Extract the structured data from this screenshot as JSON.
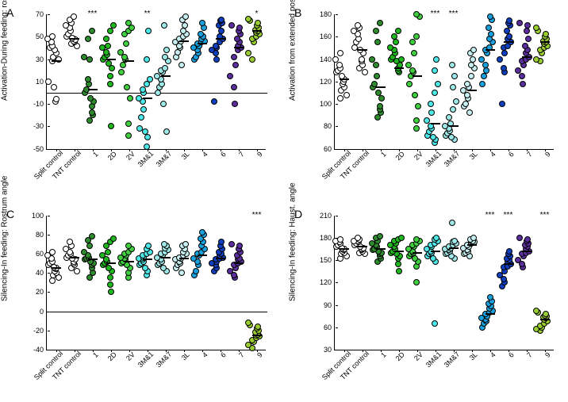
{
  "panel_letter_fontsize": 14,
  "label_fontsize": 10,
  "tick_fontsize": 9,
  "point_diameter": 8,
  "categories": [
    {
      "key": "split",
      "label": "Split control",
      "color": "#ffffff"
    },
    {
      "key": "tnt",
      "label": "TNT control",
      "color": "#ffffff"
    },
    {
      "key": "c1",
      "label": "1",
      "color": "#2e8b2e"
    },
    {
      "key": "c2D",
      "label": "2D",
      "color": "#1fb81f"
    },
    {
      "key": "c2V",
      "label": "2V",
      "color": "#3fcf3f"
    },
    {
      "key": "c3M1",
      "label": "3M&1",
      "color": "#4fe8e8"
    },
    {
      "key": "c3M7",
      "label": "3M&7",
      "color": "#9ee8e8"
    },
    {
      "key": "c3L",
      "label": "3L",
      "color": "#c7eef0"
    },
    {
      "key": "c4",
      "label": "4",
      "color": "#1aa0dc"
    },
    {
      "key": "c6",
      "label": "6",
      "color": "#1040c0"
    },
    {
      "key": "c7",
      "label": "7",
      "color": "#5a2e9c"
    },
    {
      "key": "c9",
      "label": "9",
      "color": "#9acd32"
    }
  ],
  "panels": [
    {
      "id": "A",
      "letter": "A",
      "ylabel": "Activation-During feeding: rostrum angle",
      "ymin": -50,
      "ymax": 70,
      "ytick_step": 20,
      "zeroline": 0,
      "sig": {
        "c1": "***",
        "c3M1": "**",
        "c9": "*"
      },
      "data": {
        "split": [
          28,
          30,
          32,
          35,
          38,
          -8,
          -6,
          5,
          10,
          40,
          42,
          45,
          48,
          50
        ],
        "tnt": [
          42,
          44,
          45,
          46,
          48,
          47,
          49,
          50,
          52,
          55,
          58,
          60,
          62,
          65,
          68
        ],
        "c1": [
          -25,
          -20,
          -18,
          -12,
          -8,
          -5,
          0,
          3,
          8,
          12,
          32,
          30,
          48,
          55
        ],
        "c2D": [
          -30,
          8,
          15,
          22,
          26,
          30,
          32,
          34,
          36,
          40,
          42,
          48,
          55,
          60
        ],
        "c2V": [
          -38,
          -28,
          -5,
          5,
          18,
          25,
          30,
          32,
          36,
          44,
          52,
          55,
          58,
          62
        ],
        "c3M1": [
          -48,
          -40,
          -35,
          -32,
          -22,
          -15,
          -8,
          -5,
          0,
          3,
          8,
          12,
          30,
          55
        ],
        "c3M7": [
          -35,
          -10,
          0,
          5,
          8,
          12,
          15,
          18,
          20,
          22,
          28,
          32,
          38,
          60
        ],
        "c3L": [
          25,
          32,
          36,
          40,
          42,
          45,
          46,
          48,
          50,
          52,
          55,
          60,
          65,
          68
        ],
        "c4": [
          30,
          32,
          35,
          38,
          40,
          42,
          44,
          45,
          46,
          48,
          50,
          52,
          58,
          62
        ],
        "c6": [
          -8,
          30,
          35,
          38,
          40,
          42,
          45,
          48,
          50,
          55,
          60,
          62,
          64,
          65
        ],
        "c7": [
          -10,
          5,
          15,
          25,
          32,
          38,
          40,
          42,
          45,
          48,
          52,
          55,
          58,
          60
        ],
        "c9": [
          30,
          35,
          45,
          48,
          50,
          52,
          54,
          55,
          56,
          58,
          60,
          62,
          64,
          66
        ]
      },
      "medians": {
        "split": 28,
        "tnt": 48,
        "c1": 3,
        "c2D": 30,
        "c2V": 28,
        "c3M1": -5,
        "c3M7": 15,
        "c3L": 46,
        "c4": 44,
        "c6": 48,
        "c7": 40,
        "c9": 55
      }
    },
    {
      "id": "B",
      "letter": "B",
      "ylabel": "Activation from extended position\nhaust angle",
      "ymin": 60,
      "ymax": 180,
      "ytick_step": 20,
      "zeroline": null,
      "sig": {
        "c3M1": "***",
        "c3M7": "***"
      },
      "data": {
        "split": [
          105,
          108,
          112,
          115,
          118,
          120,
          122,
          125,
          128,
          130,
          132,
          135,
          140,
          145
        ],
        "tnt": [
          128,
          132,
          135,
          138,
          140,
          145,
          148,
          150,
          155,
          158,
          162,
          165,
          168,
          170
        ],
        "c1": [
          88,
          92,
          95,
          98,
          105,
          110,
          115,
          118,
          125,
          135,
          140,
          155,
          165,
          172
        ],
        "c2D": [
          128,
          130,
          132,
          135,
          138,
          140,
          142,
          145,
          148,
          150,
          155,
          160,
          165,
          140
        ],
        "c2V": [
          78,
          85,
          98,
          108,
          118,
          125,
          128,
          130,
          135,
          145,
          155,
          160,
          178,
          180
        ],
        "c3M1": [
          65,
          68,
          70,
          72,
          75,
          78,
          80,
          85,
          92,
          100,
          110,
          118,
          130,
          140
        ],
        "c3M7": [
          68,
          70,
          72,
          74,
          76,
          78,
          80,
          82,
          88,
          95,
          102,
          115,
          125,
          135
        ],
        "c3L": [
          92,
          98,
          100,
          105,
          108,
          112,
          115,
          118,
          125,
          132,
          135,
          140,
          145,
          148
        ],
        "c4": [
          118,
          125,
          130,
          135,
          140,
          145,
          148,
          150,
          155,
          158,
          162,
          168,
          175,
          178
        ],
        "c6": [
          100,
          128,
          132,
          140,
          145,
          150,
          152,
          155,
          158,
          160,
          165,
          170,
          172,
          174
        ],
        "c7": [
          118,
          125,
          130,
          135,
          138,
          140,
          142,
          145,
          148,
          152,
          158,
          165,
          170,
          172
        ],
        "c9": [
          138,
          140,
          145,
          148,
          150,
          152,
          154,
          155,
          156,
          158,
          160,
          162,
          165,
          168
        ]
      },
      "medians": {
        "split": 122,
        "tnt": 148,
        "c1": 115,
        "c2D": 132,
        "c2V": 125,
        "c3M1": 82,
        "c3M7": 80,
        "c3L": 112,
        "c4": 148,
        "c6": 155,
        "c7": 142,
        "c9": 155
      }
    },
    {
      "id": "C",
      "letter": "C",
      "ylabel": "Silencing-In feeding: Rostrum angle",
      "ymin": -40,
      "ymax": 100,
      "ytick_step": 20,
      "zeroline": 0,
      "sig": {
        "c9": "***"
      },
      "data": {
        "split": [
          32,
          35,
          38,
          40,
          42,
          44,
          45,
          46,
          48,
          50,
          52,
          55,
          58,
          62
        ],
        "tnt": [
          42,
          45,
          48,
          50,
          52,
          54,
          55,
          56,
          58,
          60,
          62,
          65,
          68,
          72
        ],
        "c1": [
          35,
          40,
          45,
          48,
          50,
          52,
          54,
          55,
          56,
          58,
          62,
          68,
          74,
          78
        ],
        "c2D": [
          20,
          28,
          35,
          42,
          45,
          48,
          50,
          52,
          54,
          58,
          62,
          68,
          72,
          76
        ],
        "c2V": [
          35,
          40,
          45,
          48,
          50,
          52,
          54,
          55,
          56,
          58,
          60,
          62,
          65,
          68
        ],
        "c3M1": [
          38,
          42,
          45,
          48,
          50,
          52,
          54,
          55,
          56,
          58,
          60,
          62,
          65,
          68
        ],
        "c3M7": [
          42,
          45,
          48,
          50,
          52,
          54,
          56,
          58,
          60,
          62,
          64,
          66,
          68,
          70
        ],
        "c3L": [
          40,
          45,
          48,
          50,
          52,
          54,
          55,
          56,
          58,
          60,
          62,
          65,
          68,
          70
        ],
        "c4": [
          38,
          42,
          48,
          52,
          55,
          58,
          60,
          62,
          65,
          68,
          72,
          76,
          80,
          82
        ],
        "c6": [
          42,
          45,
          48,
          50,
          52,
          54,
          55,
          56,
          58,
          60,
          62,
          65,
          68,
          72
        ],
        "c7": [
          35,
          38,
          42,
          45,
          48,
          50,
          52,
          54,
          55,
          58,
          62,
          65,
          68,
          70
        ],
        "c9": [
          -38,
          -35,
          -32,
          -30,
          -28,
          -26,
          -25,
          -24,
          -22,
          -20,
          -18,
          -16,
          -14,
          -12
        ]
      },
      "medians": {
        "split": 45,
        "tnt": 56,
        "c1": 54,
        "c2D": 50,
        "c2V": 52,
        "c3M1": 54,
        "c3M7": 56,
        "c3L": 55,
        "c4": 58,
        "c6": 55,
        "c7": 50,
        "c9": -25
      }
    },
    {
      "id": "D",
      "letter": "D",
      "ylabel": "Silencing-In feeding: Haust. angle",
      "ymin": 30,
      "ymax": 210,
      "ytick_step": 30,
      "zeroline": null,
      "sig": {
        "c4": "***",
        "c6": "***",
        "c9": "***"
      },
      "data": {
        "split": [
          152,
          155,
          158,
          160,
          162,
          164,
          165,
          166,
          168,
          170,
          172,
          174,
          176,
          178
        ],
        "tnt": [
          158,
          160,
          162,
          164,
          165,
          166,
          168,
          170,
          172,
          174,
          175,
          176,
          178,
          180
        ],
        "c1": [
          148,
          152,
          155,
          158,
          160,
          162,
          164,
          165,
          168,
          170,
          172,
          176,
          180,
          182
        ],
        "c2D": [
          135,
          145,
          152,
          155,
          158,
          160,
          162,
          165,
          168,
          170,
          172,
          175,
          178,
          180
        ],
        "c2V": [
          120,
          142,
          148,
          152,
          155,
          158,
          160,
          162,
          165,
          168,
          170,
          172,
          175,
          178
        ],
        "c3M1": [
          65,
          148,
          152,
          155,
          158,
          160,
          162,
          165,
          168,
          170,
          172,
          175,
          178,
          180
        ],
        "c3M7": [
          152,
          155,
          158,
          160,
          162,
          164,
          165,
          166,
          168,
          170,
          172,
          174,
          176,
          200
        ],
        "c3L": [
          155,
          158,
          160,
          162,
          164,
          166,
          168,
          170,
          172,
          174,
          175,
          176,
          178,
          180
        ],
        "c4": [
          60,
          65,
          68,
          70,
          72,
          75,
          78,
          80,
          82,
          85,
          88,
          92,
          95,
          100
        ],
        "c6": [
          115,
          120,
          125,
          130,
          135,
          140,
          142,
          145,
          148,
          150,
          152,
          155,
          158,
          162
        ],
        "c7": [
          140,
          145,
          150,
          155,
          158,
          160,
          162,
          165,
          168,
          170,
          172,
          175,
          178,
          180
        ],
        "c9": [
          55,
          58,
          60,
          62,
          65,
          68,
          70,
          72,
          74,
          75,
          76,
          78,
          80,
          82
        ]
      },
      "medians": {
        "split": 165,
        "tnt": 168,
        "c1": 165,
        "c2D": 162,
        "c2V": 160,
        "c3M1": 162,
        "c3M7": 166,
        "c3L": 170,
        "c4": 78,
        "c6": 145,
        "c7": 162,
        "c9": 70
      }
    }
  ]
}
